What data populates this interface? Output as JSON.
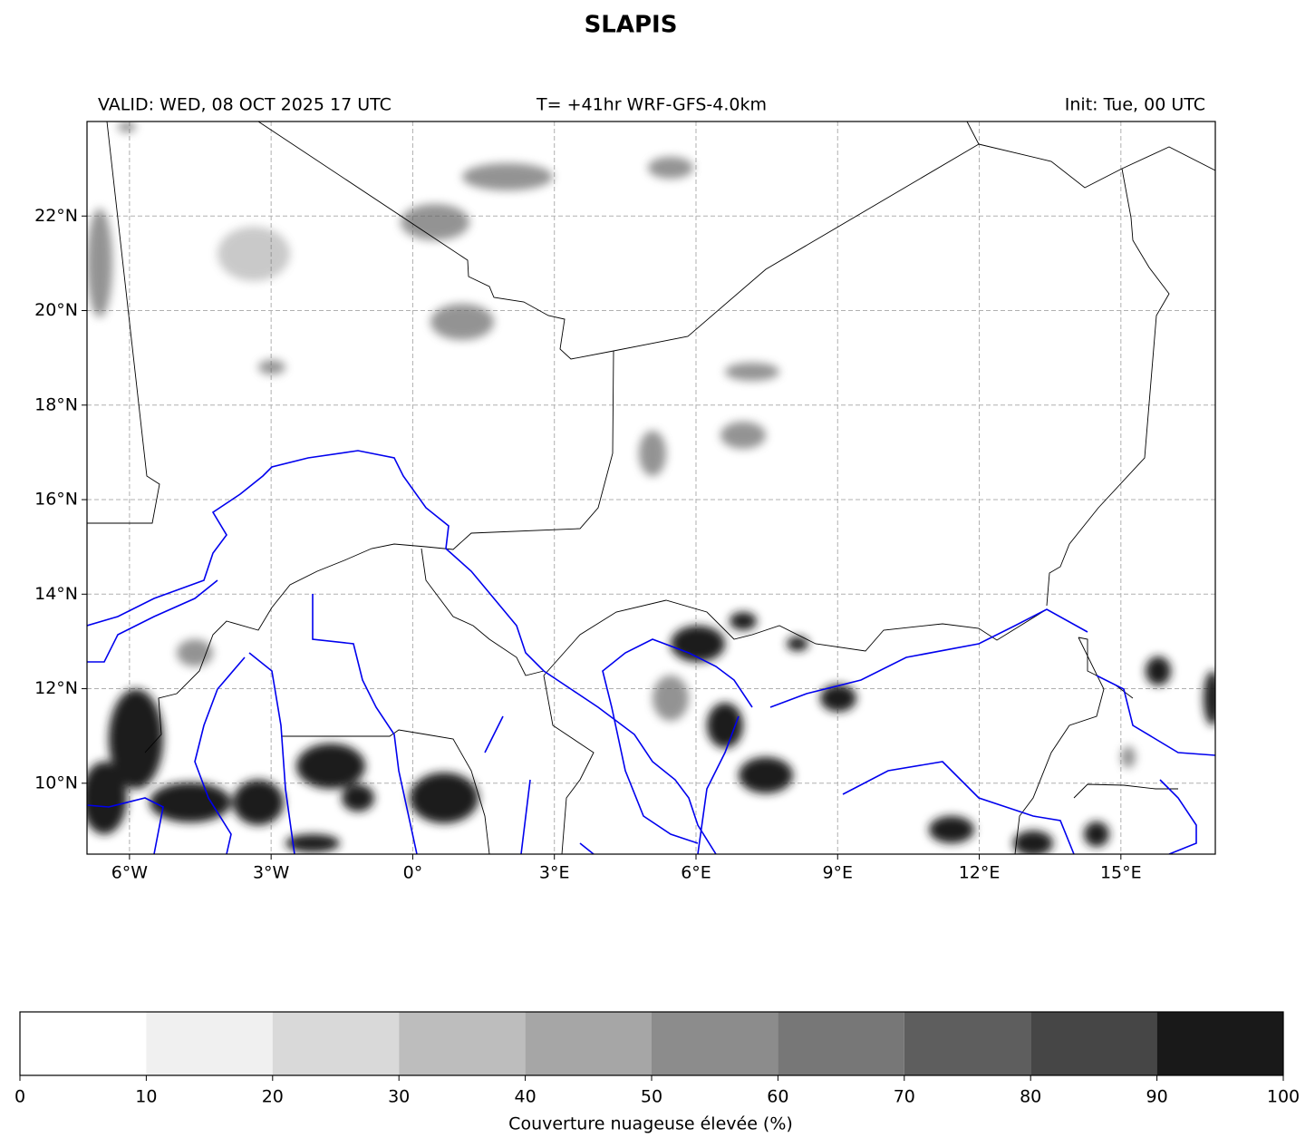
{
  "chart_data": {
    "type": "map",
    "title": "SLAPIS",
    "subtitle_left": "VALID: WED, 08 OCT 2025 17 UTC",
    "subtitle_center": "T= +41hr WRF-GFS-4.0km",
    "subtitle_right": "Init: Tue, 00 UTC",
    "xlim": [
      -6.9,
      17
    ],
    "ylim": [
      8.5,
      24
    ],
    "xticks": [
      {
        "value": -6,
        "label": "6°W"
      },
      {
        "value": -3,
        "label": "3°W"
      },
      {
        "value": 0,
        "label": "0°"
      },
      {
        "value": 3,
        "label": "3°E"
      },
      {
        "value": 6,
        "label": "6°E"
      },
      {
        "value": 9,
        "label": "9°E"
      },
      {
        "value": 12,
        "label": "12°E"
      },
      {
        "value": 15,
        "label": "15°E"
      }
    ],
    "yticks": [
      {
        "value": 10,
        "label": "10°N"
      },
      {
        "value": 12,
        "label": "12°N"
      },
      {
        "value": 14,
        "label": "14°N"
      },
      {
        "value": 16,
        "label": "16°N"
      },
      {
        "value": 18,
        "label": "18°N"
      },
      {
        "value": 20,
        "label": "20°N"
      },
      {
        "value": 22,
        "label": "22°N"
      }
    ],
    "grid": true,
    "colorbar": {
      "label": "Couverture nuageuse élevée (%)",
      "ticks": [
        0,
        10,
        20,
        30,
        40,
        50,
        60,
        70,
        80,
        90,
        100
      ],
      "colors": [
        "#ffffff",
        "#f0f0f0",
        "#d9d9d9",
        "#bdbdbd",
        "#a6a6a6",
        "#8c8c8c",
        "#777777",
        "#5e5e5e",
        "#464646",
        "#191919"
      ]
    }
  }
}
